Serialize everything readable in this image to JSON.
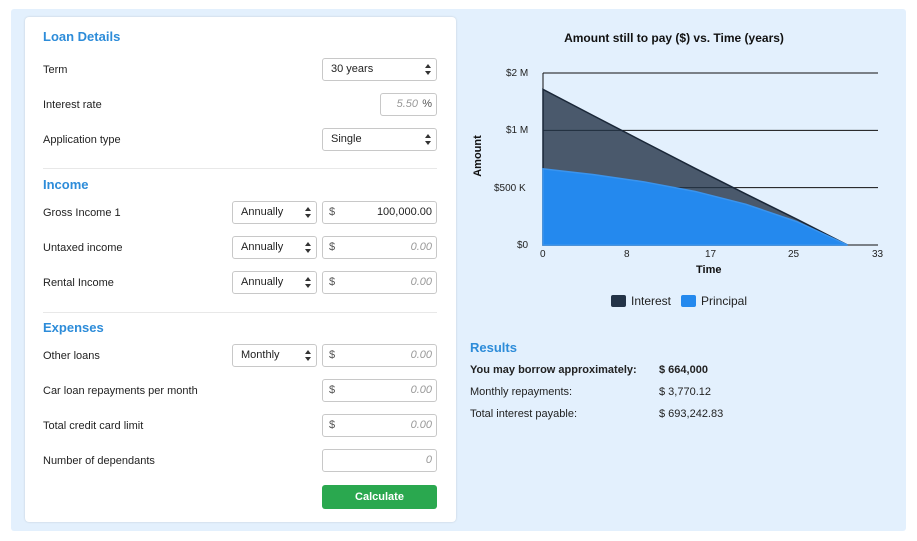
{
  "loan_details": {
    "title": "Loan Details",
    "term_label": "Term",
    "term_value": "30 years",
    "interest_label": "Interest rate",
    "interest_value": "5.50",
    "interest_suffix": "%",
    "application_label": "Application type",
    "application_value": "Single"
  },
  "income": {
    "title": "Income",
    "rows": [
      {
        "label": "Gross Income 1",
        "frequency": "Annually",
        "currency": "$",
        "value": "100,000.00"
      },
      {
        "label": "Untaxed income",
        "frequency": "Annually",
        "currency": "$",
        "value": "0.00"
      },
      {
        "label": "Rental Income",
        "frequency": "Annually",
        "currency": "$",
        "value": "0.00"
      }
    ]
  },
  "expenses": {
    "title": "Expenses",
    "other_loans": {
      "label": "Other loans",
      "frequency": "Monthly",
      "currency": "$",
      "value": "0.00"
    },
    "car_loan": {
      "label": "Car loan repayments per month",
      "currency": "$",
      "value": "0.00"
    },
    "credit_card": {
      "label": "Total credit card limit",
      "currency": "$",
      "value": "0.00"
    },
    "dependants": {
      "label": "Number of dependants",
      "value": "0"
    }
  },
  "calculate_label": "Calculate",
  "chart_data": {
    "type": "area",
    "title": "Amount still to pay ($) vs. Time (years)",
    "xlabel": "Time",
    "ylabel": "Amount",
    "x_ticks": [
      "0",
      "8",
      "17",
      "25",
      "33"
    ],
    "y_ticks": [
      "$0",
      "$500 K",
      "$1 M",
      "$2 M"
    ],
    "xlim": [
      0,
      33
    ],
    "ylim": [
      0,
      1500000
    ],
    "grid": true,
    "legend_position": "bottom",
    "x": [
      0,
      5,
      10,
      15,
      20,
      25,
      30
    ],
    "series": [
      {
        "name": "Interest",
        "color": "#233347",
        "values": [
          1357000,
          1126000,
          896000,
          668000,
          444000,
          225000,
          0
        ]
      },
      {
        "name": "Principal",
        "color": "#2489ee",
        "values": [
          664000,
          614000,
          550000,
          467000,
          355000,
          204000,
          0
        ]
      }
    ]
  },
  "results": {
    "title": "Results",
    "borrow_label": "You may borrow approximately:",
    "borrow_value": "$ 664,000",
    "monthly_label": "Monthly repayments:",
    "monthly_value": "$ 3,770.12",
    "interest_label": "Total interest payable:",
    "interest_value": "$ 693,242.83"
  }
}
